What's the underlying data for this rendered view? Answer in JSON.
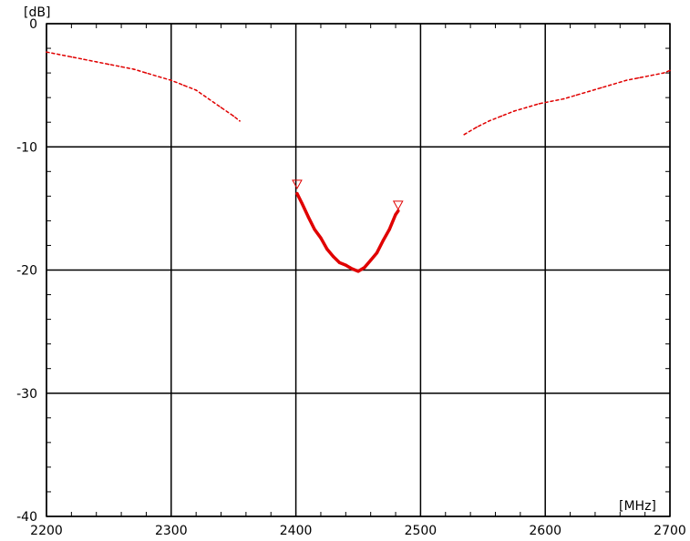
{
  "chart_data": {
    "type": "line",
    "title": "",
    "xlabel": "",
    "ylabel": "",
    "x_unit": "[MHz]",
    "y_unit": "[dB]",
    "xlim": [
      2200,
      2700
    ],
    "ylim": [
      -40,
      0
    ],
    "x_ticks": [
      "2200",
      "2300",
      "2400",
      "2500",
      "2600",
      "2700"
    ],
    "y_ticks": [
      "0",
      "-10",
      "-20",
      "-30",
      "-40"
    ],
    "grid": true,
    "colors": {
      "trace": "#e00000",
      "grid": "#000000",
      "marker": "#e00000"
    },
    "series": [
      {
        "style": "dotted",
        "x": [
          2200,
          2210,
          2220,
          2230,
          2240,
          2250,
          2260,
          2270,
          2280,
          2290,
          2300,
          2310,
          2320,
          2330,
          2340,
          2350,
          2355
        ],
        "y": [
          -2.3,
          -2.5,
          -2.7,
          -2.9,
          -3.1,
          -3.3,
          -3.5,
          -3.7,
          -4.0,
          -4.3,
          -4.6,
          -5.0,
          -5.4,
          -6.1,
          -6.8,
          -7.5,
          -7.9
        ]
      },
      {
        "style": "solid",
        "x": [
          2401,
          2405,
          2410,
          2415,
          2420,
          2425,
          2430,
          2435,
          2440,
          2445,
          2450,
          2455,
          2460,
          2465,
          2470,
          2475,
          2480,
          2482
        ],
        "y": [
          -13.8,
          -14.6,
          -15.7,
          -16.7,
          -17.4,
          -18.3,
          -18.9,
          -19.4,
          -19.6,
          -19.9,
          -20.1,
          -19.8,
          -19.2,
          -18.6,
          -17.6,
          -16.7,
          -15.5,
          -15.2
        ]
      },
      {
        "style": "dotted",
        "x": [
          2535,
          2545,
          2555,
          2565,
          2575,
          2585,
          2595,
          2605,
          2615,
          2625,
          2635,
          2645,
          2655,
          2665,
          2675,
          2685,
          2695,
          2700
        ],
        "y": [
          -9.0,
          -8.4,
          -7.9,
          -7.5,
          -7.1,
          -6.8,
          -6.5,
          -6.3,
          -6.1,
          -5.8,
          -5.5,
          -5.2,
          -4.9,
          -4.6,
          -4.4,
          -4.2,
          -4.0,
          -3.8
        ]
      }
    ],
    "markers": [
      {
        "x": 2401,
        "y": -13.0
      },
      {
        "x": 2482,
        "y": -14.7
      }
    ]
  }
}
